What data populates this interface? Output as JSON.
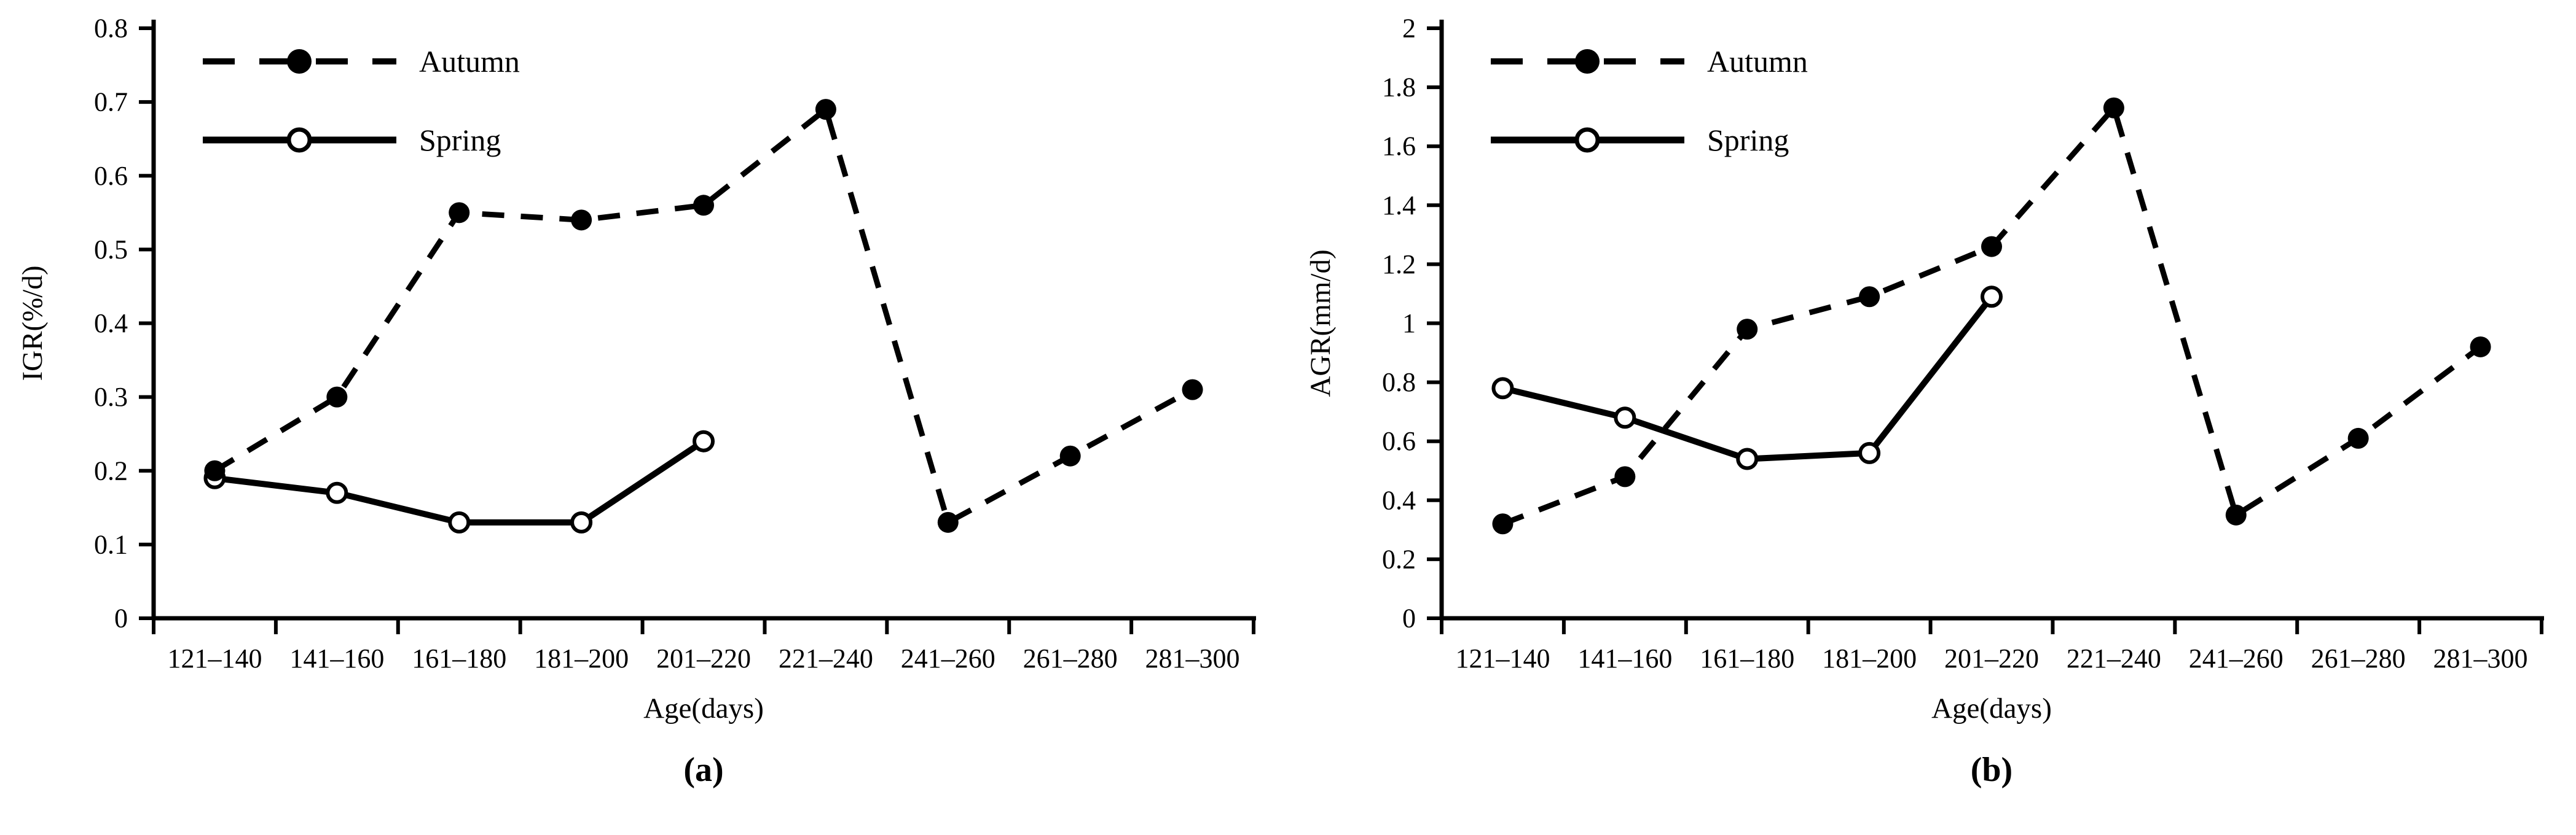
{
  "figure": {
    "background": "#ffffff",
    "ink": "#000000"
  },
  "chart_data": [
    {
      "id": "a",
      "type": "line",
      "caption": "(a)",
      "title": "",
      "xlabel": "Age(days)",
      "ylabel": "IGR(%/d)",
      "ylim": [
        0,
        0.8
      ],
      "ytick_step": 0.1,
      "ytick_labels": [
        "0",
        "0.1",
        "0.2",
        "0.3",
        "0.4",
        "0.5",
        "0.6",
        "0.7",
        "0.8"
      ],
      "categories": [
        "121–140",
        "141–160",
        "161–180",
        "181–200",
        "201–220",
        "221–240",
        "241–260",
        "261–280",
        "281–300"
      ],
      "grid": false,
      "legend": {
        "position": "top-left",
        "entries": [
          "Autumn",
          "Spring"
        ]
      },
      "series": [
        {
          "name": "Autumn",
          "line": "dashed",
          "marker": "filled-circle",
          "values": [
            0.2,
            0.3,
            0.55,
            0.54,
            0.56,
            0.69,
            0.13,
            0.22,
            0.31
          ]
        },
        {
          "name": "Spring",
          "line": "solid",
          "marker": "open-circle",
          "values": [
            0.19,
            0.17,
            0.13,
            0.13,
            0.24
          ]
        }
      ]
    },
    {
      "id": "b",
      "type": "line",
      "caption": "(b)",
      "title": "",
      "xlabel": "Age(days)",
      "ylabel": "AGR(mm/d)",
      "ylim": [
        0,
        2
      ],
      "ytick_step": 0.2,
      "ytick_labels": [
        "0",
        "0.2",
        "0.4",
        "0.6",
        "0.8",
        "1",
        "1.2",
        "1.4",
        "1.6",
        "1.8",
        "2"
      ],
      "categories": [
        "121–140",
        "141–160",
        "161–180",
        "181–200",
        "201–220",
        "221–240",
        "241–260",
        "261–280",
        "281–300"
      ],
      "grid": false,
      "legend": {
        "position": "top-left",
        "entries": [
          "Autumn",
          "Spring"
        ]
      },
      "series": [
        {
          "name": "Autumn",
          "line": "dashed",
          "marker": "filled-circle",
          "values": [
            0.32,
            0.48,
            0.98,
            1.09,
            1.26,
            1.73,
            0.35,
            0.61,
            0.92
          ]
        },
        {
          "name": "Spring",
          "line": "solid",
          "marker": "open-circle",
          "values": [
            0.78,
            0.68,
            0.54,
            0.56,
            1.09
          ]
        }
      ]
    }
  ]
}
